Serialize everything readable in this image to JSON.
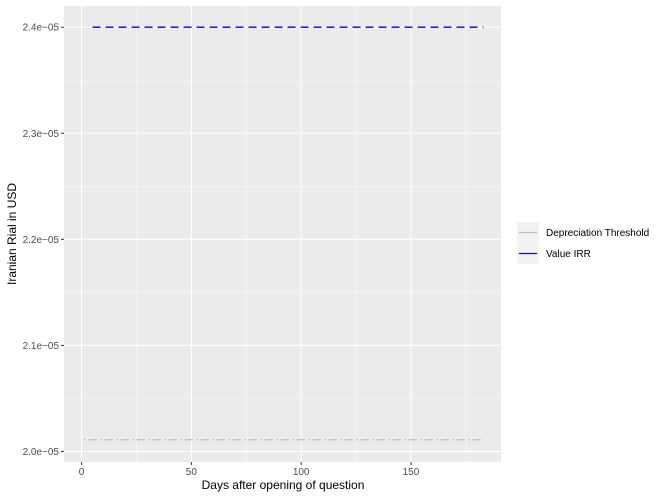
{
  "chart_data": {
    "type": "line",
    "title": "",
    "xlabel": "Days after opening of question",
    "ylabel": "Iranian Rial in USD",
    "xlim": [
      -8,
      191
    ],
    "ylim": [
      1.99e-05,
      2.42e-05
    ],
    "x_ticks": [
      0,
      50,
      100,
      150
    ],
    "x_tick_labels": [
      "0",
      "50",
      "100",
      "150"
    ],
    "y_ticks": [
      2e-05,
      2.1e-05,
      2.2e-05,
      2.3e-05,
      2.4e-05
    ],
    "y_tick_labels": [
      "2.0e−05",
      "2.1e−05",
      "2.2e−05",
      "2.3e−05",
      "2.4e−05"
    ],
    "grid": true,
    "legend_position": "right",
    "series": [
      {
        "name": "Depreciation Threshold",
        "color": "#bebebe",
        "dash": "dotdash",
        "x": [
          1,
          183
        ],
        "y": [
          2.011e-05,
          2.011e-05
        ]
      },
      {
        "name": "Value IRR",
        "color": "#0000ff",
        "dash": "dashed",
        "x": [
          5,
          183
        ],
        "y": [
          2.4e-05,
          2.4e-05
        ]
      }
    ]
  }
}
